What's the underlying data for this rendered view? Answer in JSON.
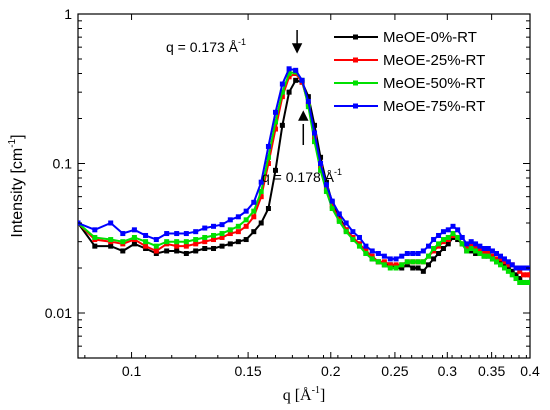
{
  "chart_data": {
    "type": "line",
    "title": "",
    "xlabel": "q  [Å",
    "xlabel_sup": "-1",
    "xlabel_close": "]",
    "ylabel": "Intensity  [cm",
    "ylabel_sup": "-1",
    "ylabel_close": "]",
    "xscale": "log",
    "yscale": "log",
    "xlim": [
      0.083,
      0.4
    ],
    "ylim": [
      0.005,
      1
    ],
    "xticks": [
      0.1,
      0.15,
      0.2,
      0.25,
      0.3,
      0.35,
      0.4
    ],
    "xtick_labels": [
      "0.1",
      "0.15",
      "0.2",
      "0.25",
      "0.3",
      "0.35",
      "0.4"
    ],
    "yticks": [
      0.01,
      0.1,
      1
    ],
    "ytick_labels": [
      "0.01",
      "0.1",
      "1"
    ],
    "legend_position": "top-right",
    "annotations": [
      {
        "text": "q = 0.173 Å",
        "sup": "-1",
        "arrow": "down",
        "x": 0.173
      },
      {
        "text": "q = 0.178 Å",
        "sup": "-1",
        "arrow": "up",
        "x": 0.178
      }
    ],
    "series": [
      {
        "name": "MeOE-0%-RT",
        "color": "#000000",
        "x": [
          0.083,
          0.088,
          0.093,
          0.097,
          0.101,
          0.105,
          0.109,
          0.113,
          0.117,
          0.121,
          0.125,
          0.129,
          0.133,
          0.137,
          0.141,
          0.145,
          0.149,
          0.153,
          0.157,
          0.161,
          0.165,
          0.169,
          0.173,
          0.177,
          0.181,
          0.185,
          0.189,
          0.193,
          0.197,
          0.201,
          0.206,
          0.211,
          0.216,
          0.221,
          0.226,
          0.231,
          0.236,
          0.241,
          0.246,
          0.251,
          0.256,
          0.261,
          0.266,
          0.271,
          0.276,
          0.281,
          0.286,
          0.291,
          0.296,
          0.301,
          0.306,
          0.311,
          0.316,
          0.321,
          0.326,
          0.331,
          0.336,
          0.341,
          0.346,
          0.351,
          0.356,
          0.361,
          0.366,
          0.371,
          0.376,
          0.381,
          0.386,
          0.391,
          0.396,
          0.4
        ],
        "y": [
          0.04,
          0.028,
          0.028,
          0.026,
          0.029,
          0.027,
          0.025,
          0.026,
          0.026,
          0.025,
          0.026,
          0.027,
          0.027,
          0.028,
          0.029,
          0.03,
          0.031,
          0.035,
          0.04,
          0.05,
          0.09,
          0.18,
          0.3,
          0.36,
          0.35,
          0.28,
          0.18,
          0.11,
          0.075,
          0.055,
          0.044,
          0.036,
          0.032,
          0.029,
          0.025,
          0.023,
          0.022,
          0.021,
          0.021,
          0.02,
          0.02,
          0.021,
          0.02,
          0.02,
          0.019,
          0.021,
          0.023,
          0.025,
          0.027,
          0.029,
          0.032,
          0.031,
          0.029,
          0.026,
          0.026,
          0.025,
          0.025,
          0.024,
          0.024,
          0.023,
          0.022,
          0.022,
          0.021,
          0.02,
          0.019,
          0.018,
          0.017,
          0.016,
          0.016,
          0.016
        ]
      },
      {
        "name": "MeOE-25%-RT",
        "color": "#ff0000",
        "x": [
          0.083,
          0.088,
          0.093,
          0.097,
          0.101,
          0.105,
          0.109,
          0.113,
          0.117,
          0.121,
          0.125,
          0.129,
          0.133,
          0.137,
          0.141,
          0.145,
          0.149,
          0.153,
          0.157,
          0.161,
          0.165,
          0.169,
          0.173,
          0.177,
          0.181,
          0.185,
          0.189,
          0.193,
          0.197,
          0.201,
          0.206,
          0.211,
          0.216,
          0.221,
          0.226,
          0.231,
          0.236,
          0.241,
          0.246,
          0.251,
          0.256,
          0.261,
          0.266,
          0.271,
          0.276,
          0.281,
          0.286,
          0.291,
          0.296,
          0.301,
          0.306,
          0.311,
          0.316,
          0.321,
          0.326,
          0.331,
          0.336,
          0.341,
          0.346,
          0.351,
          0.356,
          0.361,
          0.366,
          0.371,
          0.376,
          0.381,
          0.386,
          0.391,
          0.396,
          0.4
        ],
        "y": [
          0.04,
          0.031,
          0.03,
          0.029,
          0.031,
          0.028,
          0.026,
          0.029,
          0.028,
          0.028,
          0.029,
          0.03,
          0.031,
          0.032,
          0.034,
          0.035,
          0.038,
          0.044,
          0.06,
          0.1,
          0.17,
          0.28,
          0.38,
          0.4,
          0.35,
          0.25,
          0.15,
          0.095,
          0.068,
          0.052,
          0.042,
          0.036,
          0.032,
          0.029,
          0.026,
          0.024,
          0.022,
          0.022,
          0.021,
          0.021,
          0.021,
          0.022,
          0.022,
          0.022,
          0.022,
          0.024,
          0.026,
          0.028,
          0.03,
          0.031,
          0.033,
          0.032,
          0.029,
          0.027,
          0.028,
          0.027,
          0.027,
          0.026,
          0.025,
          0.024,
          0.023,
          0.023,
          0.022,
          0.021,
          0.021,
          0.02,
          0.019,
          0.018,
          0.018,
          0.018
        ]
      },
      {
        "name": "MeOE-50%-RT",
        "color": "#00e000",
        "x": [
          0.083,
          0.088,
          0.093,
          0.097,
          0.101,
          0.105,
          0.109,
          0.113,
          0.117,
          0.121,
          0.125,
          0.129,
          0.133,
          0.137,
          0.141,
          0.145,
          0.149,
          0.153,
          0.157,
          0.161,
          0.165,
          0.169,
          0.173,
          0.177,
          0.181,
          0.185,
          0.189,
          0.193,
          0.197,
          0.201,
          0.206,
          0.211,
          0.216,
          0.221,
          0.226,
          0.231,
          0.236,
          0.241,
          0.246,
          0.251,
          0.256,
          0.261,
          0.266,
          0.271,
          0.276,
          0.281,
          0.286,
          0.291,
          0.296,
          0.301,
          0.306,
          0.311,
          0.316,
          0.321,
          0.326,
          0.331,
          0.336,
          0.341,
          0.346,
          0.351,
          0.356,
          0.361,
          0.366,
          0.371,
          0.376,
          0.381,
          0.386,
          0.391,
          0.396,
          0.4
        ],
        "y": [
          0.04,
          0.032,
          0.031,
          0.03,
          0.032,
          0.03,
          0.028,
          0.03,
          0.03,
          0.03,
          0.031,
          0.032,
          0.033,
          0.034,
          0.036,
          0.038,
          0.042,
          0.048,
          0.065,
          0.11,
          0.19,
          0.3,
          0.4,
          0.41,
          0.36,
          0.24,
          0.14,
          0.09,
          0.065,
          0.05,
          0.041,
          0.035,
          0.031,
          0.028,
          0.025,
          0.023,
          0.022,
          0.021,
          0.02,
          0.02,
          0.021,
          0.022,
          0.022,
          0.022,
          0.022,
          0.024,
          0.027,
          0.029,
          0.031,
          0.032,
          0.034,
          0.032,
          0.029,
          0.026,
          0.027,
          0.026,
          0.025,
          0.024,
          0.024,
          0.023,
          0.022,
          0.021,
          0.02,
          0.019,
          0.018,
          0.017,
          0.016,
          0.016,
          0.016,
          0.016
        ]
      },
      {
        "name": "MeOE-75%-RT",
        "color": "#0000ff",
        "x": [
          0.083,
          0.088,
          0.093,
          0.097,
          0.101,
          0.105,
          0.109,
          0.113,
          0.117,
          0.121,
          0.125,
          0.129,
          0.133,
          0.137,
          0.141,
          0.145,
          0.149,
          0.153,
          0.157,
          0.161,
          0.165,
          0.169,
          0.173,
          0.177,
          0.181,
          0.185,
          0.189,
          0.193,
          0.197,
          0.201,
          0.206,
          0.211,
          0.216,
          0.221,
          0.226,
          0.231,
          0.236,
          0.241,
          0.246,
          0.251,
          0.256,
          0.261,
          0.266,
          0.271,
          0.276,
          0.281,
          0.286,
          0.291,
          0.296,
          0.301,
          0.306,
          0.311,
          0.316,
          0.321,
          0.326,
          0.331,
          0.336,
          0.341,
          0.346,
          0.351,
          0.356,
          0.361,
          0.366,
          0.371,
          0.376,
          0.381,
          0.386,
          0.391,
          0.396,
          0.4
        ],
        "y": [
          0.04,
          0.036,
          0.04,
          0.034,
          0.036,
          0.033,
          0.031,
          0.034,
          0.034,
          0.034,
          0.035,
          0.037,
          0.038,
          0.039,
          0.042,
          0.044,
          0.048,
          0.055,
          0.075,
          0.13,
          0.22,
          0.34,
          0.43,
          0.42,
          0.36,
          0.26,
          0.16,
          0.1,
          0.072,
          0.056,
          0.046,
          0.04,
          0.035,
          0.032,
          0.028,
          0.026,
          0.025,
          0.024,
          0.023,
          0.023,
          0.024,
          0.025,
          0.025,
          0.025,
          0.026,
          0.028,
          0.031,
          0.033,
          0.035,
          0.036,
          0.038,
          0.036,
          0.032,
          0.029,
          0.03,
          0.029,
          0.028,
          0.027,
          0.027,
          0.026,
          0.025,
          0.024,
          0.023,
          0.022,
          0.021,
          0.02,
          0.02,
          0.02,
          0.02,
          0.02
        ]
      }
    ]
  }
}
